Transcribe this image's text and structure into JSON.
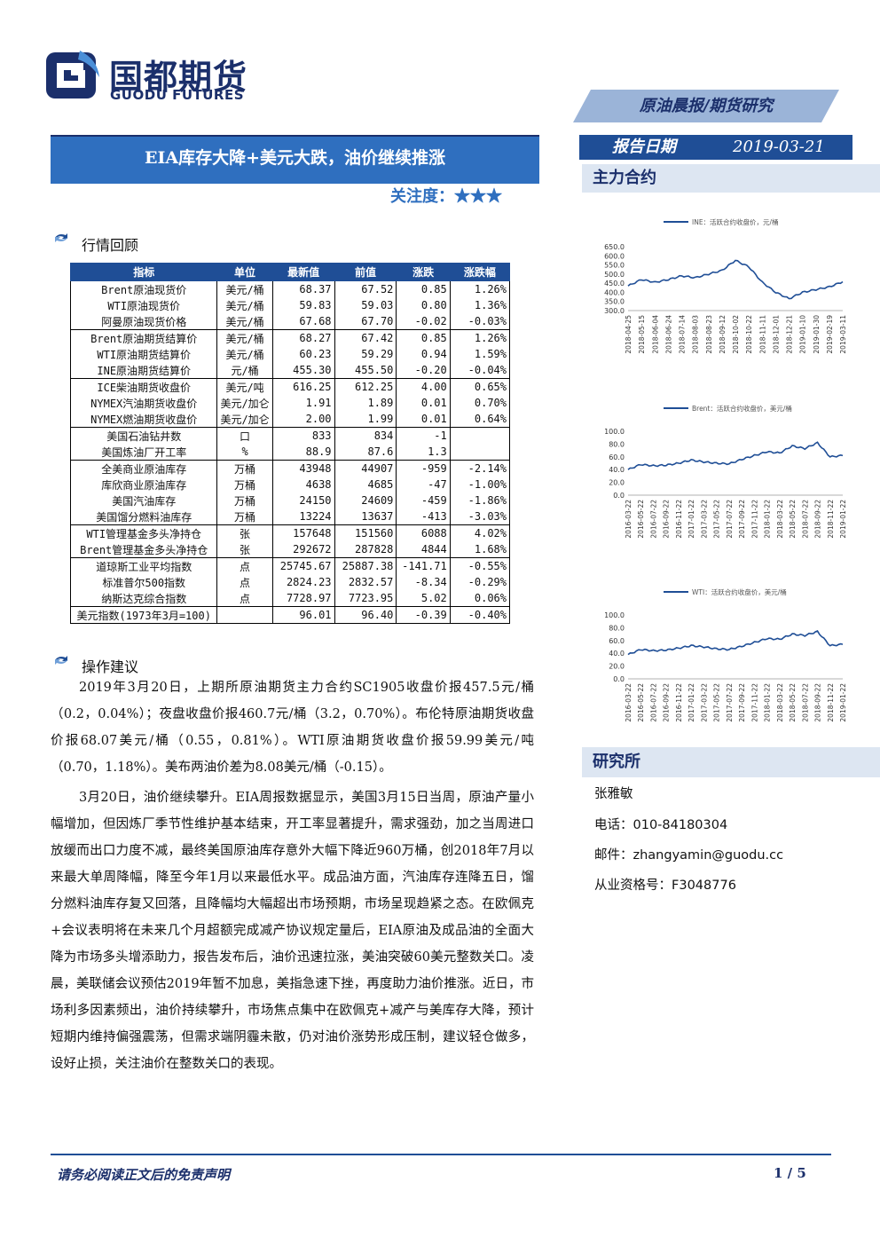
{
  "header": {
    "logo_cn": "国都期货",
    "logo_en": "GUODU FUTURES",
    "ribbon": "原油晨报/期货研究",
    "title": "EIA库存大降+美元大跌，油价继续推涨",
    "attention": "关注度：★★★",
    "date_label": "报告日期",
    "date_value": "2019-03-21",
    "main_contract": "主力合约"
  },
  "section1": "行情回顾",
  "section2": "操作建议",
  "table": {
    "headers": [
      "指标",
      "单位",
      "最新值",
      "前值",
      "涨跌",
      "涨跌幅"
    ],
    "groups": [
      [
        [
          "Brent原油现货价",
          "美元/桶",
          "68.37",
          "67.52",
          "0.85",
          "1.26%"
        ],
        [
          "WTI原油现货价",
          "美元/桶",
          "59.83",
          "59.03",
          "0.80",
          "1.36%"
        ],
        [
          "阿曼原油现货价格",
          "美元/桶",
          "67.68",
          "67.70",
          "-0.02",
          "-0.03%"
        ]
      ],
      [
        [
          "Brent原油期货结算价",
          "美元/桶",
          "68.27",
          "67.42",
          "0.85",
          "1.26%"
        ],
        [
          "WTI原油期货结算价",
          "美元/桶",
          "60.23",
          "59.29",
          "0.94",
          "1.59%"
        ],
        [
          "INE原油期货结算价",
          "元/桶",
          "455.30",
          "455.50",
          "-0.20",
          "-0.04%"
        ]
      ],
      [
        [
          "ICE柴油期货收盘价",
          "美元/吨",
          "616.25",
          "612.25",
          "4.00",
          "0.65%"
        ],
        [
          "NYMEX汽油期货收盘价",
          "美元/加仑",
          "1.91",
          "1.89",
          "0.01",
          "0.70%"
        ],
        [
          "NYMEX燃油期货收盘价",
          "美元/加仑",
          "2.00",
          "1.99",
          "0.01",
          "0.64%"
        ]
      ],
      [
        [
          "美国石油钻井数",
          "口",
          "833",
          "834",
          "-1",
          ""
        ],
        [
          "美国炼油厂开工率",
          "%",
          "88.9",
          "87.6",
          "1.3",
          ""
        ]
      ],
      [
        [
          "全美商业原油库存",
          "万桶",
          "43948",
          "44907",
          "-959",
          "-2.14%"
        ],
        [
          "库欣商业原油库存",
          "万桶",
          "4638",
          "4685",
          "-47",
          "-1.00%"
        ],
        [
          "美国汽油库存",
          "万桶",
          "24150",
          "24609",
          "-459",
          "-1.86%"
        ],
        [
          "美国馏分燃料油库存",
          "万桶",
          "13224",
          "13637",
          "-413",
          "-3.03%"
        ]
      ],
      [
        [
          "WTI管理基金多头净持仓",
          "张",
          "157648",
          "151560",
          "6088",
          "4.02%"
        ],
        [
          "Brent管理基金多头净持仓",
          "张",
          "292672",
          "287828",
          "4844",
          "1.68%"
        ]
      ],
      [
        [
          "道琼斯工业平均指数",
          "点",
          "25745.67",
          "25887.38",
          "-141.71",
          "-0.55%"
        ],
        [
          "标准普尔500指数",
          "点",
          "2824.23",
          "2832.57",
          "-8.34",
          "-0.29%"
        ],
        [
          "纳斯达克综合指数",
          "点",
          "7728.97",
          "7723.95",
          "5.02",
          "0.06%"
        ]
      ],
      [
        [
          "美元指数(1973年3月=100)",
          "",
          "96.01",
          "96.40",
          "-0.39",
          "-0.40%"
        ]
      ]
    ]
  },
  "paragraphs": [
    "2019年3月20日，上期所原油期货主力合约SC1905收盘价报457.5元/桶（0.2，0.04%）；夜盘收盘价报460.7元/桶（3.2，0.70%）。布伦特原油期货收盘价报68.07美元/桶（0.55，0.81%）。WTI原油期货收盘价报59.99美元/吨（0.70，1.18%）。美布两油价差为8.08美元/桶（-0.15）。",
    "3月20日，油价继续攀升。EIA周报数据显示，美国3月15日当周，原油产量小幅增加，但因炼厂季节性维护基本结束，开工率显著提升，需求强劲，加之当周进口放缓而出口力度不减，最终美国原油库存意外大幅下降近960万桶，创2018年7月以来最大单周降幅，降至今年1月以来最低水平。成品油方面，汽油库存连降五日，馏分燃料油库存复又回落，且降幅均大幅超出市场预期，市场呈现趋紧之态。在欧佩克+会议表明将在未来几个月超额完成减产协议规定量后，EIA原油及成品油的全面大降为市场多头增添助力，报告发布后，油价迅速拉涨，美油突破60美元整数关口。凌晨，美联储会议预估2019年暂不加息，美指急速下挫，再度助力油价推涨。近日，市场利多因素频出，油价持续攀升，市场焦点集中在欧佩克+减产与美库存大降，预计短期内维持偏强震荡，但需求端阴霾未散，仍对油价涨势形成压制，建议轻仓做多，设好止损，关注油价在整数关口的表现。"
  ],
  "institute": {
    "title": "研究所",
    "name": "张雅敏",
    "phone": "电话：010-84180304",
    "email": "邮件：zhangyamin@guodu.cc",
    "license": "从业资格号：F3048776"
  },
  "footer": {
    "disclaimer": "请务必阅读正文后的免责声明",
    "page": "1 / 5"
  },
  "colors": {
    "navy": "#1b2f6b",
    "blue": "#2f6fbf",
    "dark_blue": "#1f4e96",
    "light": "#dde6f2"
  },
  "chart_data": [
    {
      "type": "line",
      "series": [
        {
          "name": "INE：活跃合约收盘价，元/桶"
        }
      ],
      "x": [
        "2018-04-25",
        "2018-05-15",
        "2018-06-04",
        "2018-06-24",
        "2018-07-14",
        "2018-08-03",
        "2018-08-23",
        "2018-09-12",
        "2018-10-02",
        "2018-10-22",
        "2018-11-11",
        "2018-12-01",
        "2018-12-21",
        "2019-01-10",
        "2019-01-30",
        "2019-02-19",
        "2019-03-11"
      ],
      "values": [
        435,
        470,
        455,
        470,
        490,
        480,
        500,
        520,
        575,
        540,
        455,
        400,
        365,
        400,
        415,
        430,
        458
      ],
      "ylim": [
        300,
        650
      ],
      "yticks": [
        "650.0",
        "600.0",
        "550.0",
        "500.0",
        "450.0",
        "400.0",
        "350.0",
        "300.0"
      ]
    },
    {
      "type": "line",
      "series": [
        {
          "name": "Brent：活跃合约收盘价，美元/桶"
        }
      ],
      "x": [
        "2016-03-22",
        "2016-05-22",
        "2016-07-22",
        "2016-09-22",
        "2016-11-22",
        "2017-01-22",
        "2017-03-22",
        "2017-05-22",
        "2017-07-22",
        "2017-09-22",
        "2017-11-22",
        "2018-01-22",
        "2018-03-22",
        "2018-05-22",
        "2018-07-22",
        "2018-09-22",
        "2018-11-22",
        "2019-01-22"
      ],
      "values": [
        40,
        48,
        46,
        47,
        50,
        55,
        52,
        50,
        49,
        56,
        62,
        68,
        66,
        77,
        73,
        82,
        60,
        62
      ],
      "ylim": [
        0,
        100
      ],
      "yticks": [
        "100.0",
        "80.0",
        "60.0",
        "40.0",
        "20.0",
        "0.0"
      ]
    },
    {
      "type": "line",
      "series": [
        {
          "name": "WTI：活跃合约收盘价，美元/桶"
        }
      ],
      "x": [
        "2016-03-22",
        "2016-05-22",
        "2016-07-22",
        "2016-09-22",
        "2016-11-22",
        "2017-01-22",
        "2017-03-22",
        "2017-05-22",
        "2017-07-22",
        "2017-09-22",
        "2017-11-22",
        "2018-01-22",
        "2018-03-22",
        "2018-05-22",
        "2018-07-22",
        "2018-09-22",
        "2018-11-22",
        "2019-01-22"
      ],
      "values": [
        38,
        46,
        44,
        45,
        48,
        52,
        50,
        47,
        46,
        51,
        57,
        63,
        62,
        70,
        68,
        74,
        52,
        54
      ],
      "ylim": [
        0,
        100
      ],
      "yticks": [
        "100.0",
        "80.0",
        "60.0",
        "40.0",
        "20.0",
        "0.0"
      ]
    }
  ]
}
